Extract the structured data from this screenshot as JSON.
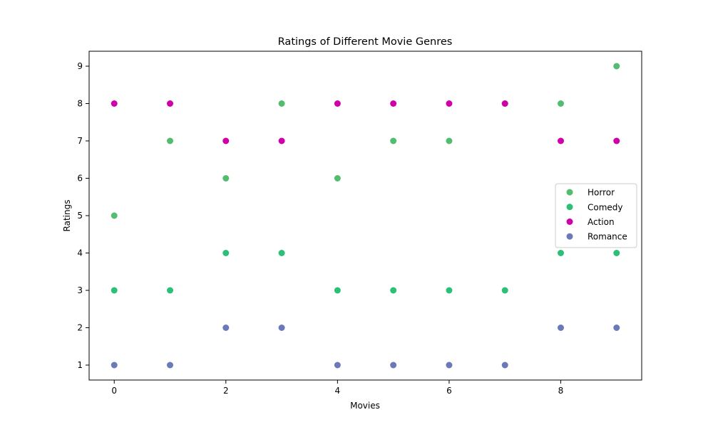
{
  "chart_data": {
    "type": "scatter",
    "title": "Ratings of Different Movie Genres",
    "xlabel": "Movies",
    "ylabel": "Ratings",
    "x": [
      0,
      1,
      2,
      3,
      4,
      5,
      6,
      7,
      8,
      9
    ],
    "xlim": [
      -0.45,
      9.45
    ],
    "ylim": [
      0.6,
      9.4
    ],
    "xticks": [
      0,
      2,
      4,
      6,
      8
    ],
    "yticks": [
      1,
      2,
      3,
      4,
      5,
      6,
      7,
      8,
      9
    ],
    "grid": false,
    "legend_position": "center-right",
    "series": [
      {
        "name": "Horror",
        "color": "#52bd6f",
        "values": [
          5,
          7,
          6,
          8,
          6,
          7,
          7,
          8,
          8,
          9
        ]
      },
      {
        "name": "Comedy",
        "color": "#2cbf78",
        "values": [
          3,
          3,
          4,
          4,
          3,
          3,
          3,
          3,
          4,
          4
        ]
      },
      {
        "name": "Action",
        "color": "#d000a8",
        "values": [
          8,
          8,
          7,
          7,
          8,
          8,
          8,
          8,
          7,
          7
        ]
      },
      {
        "name": "Romance",
        "color": "#6a79b8",
        "values": [
          1,
          1,
          2,
          2,
          1,
          1,
          1,
          1,
          2,
          2
        ]
      }
    ]
  }
}
